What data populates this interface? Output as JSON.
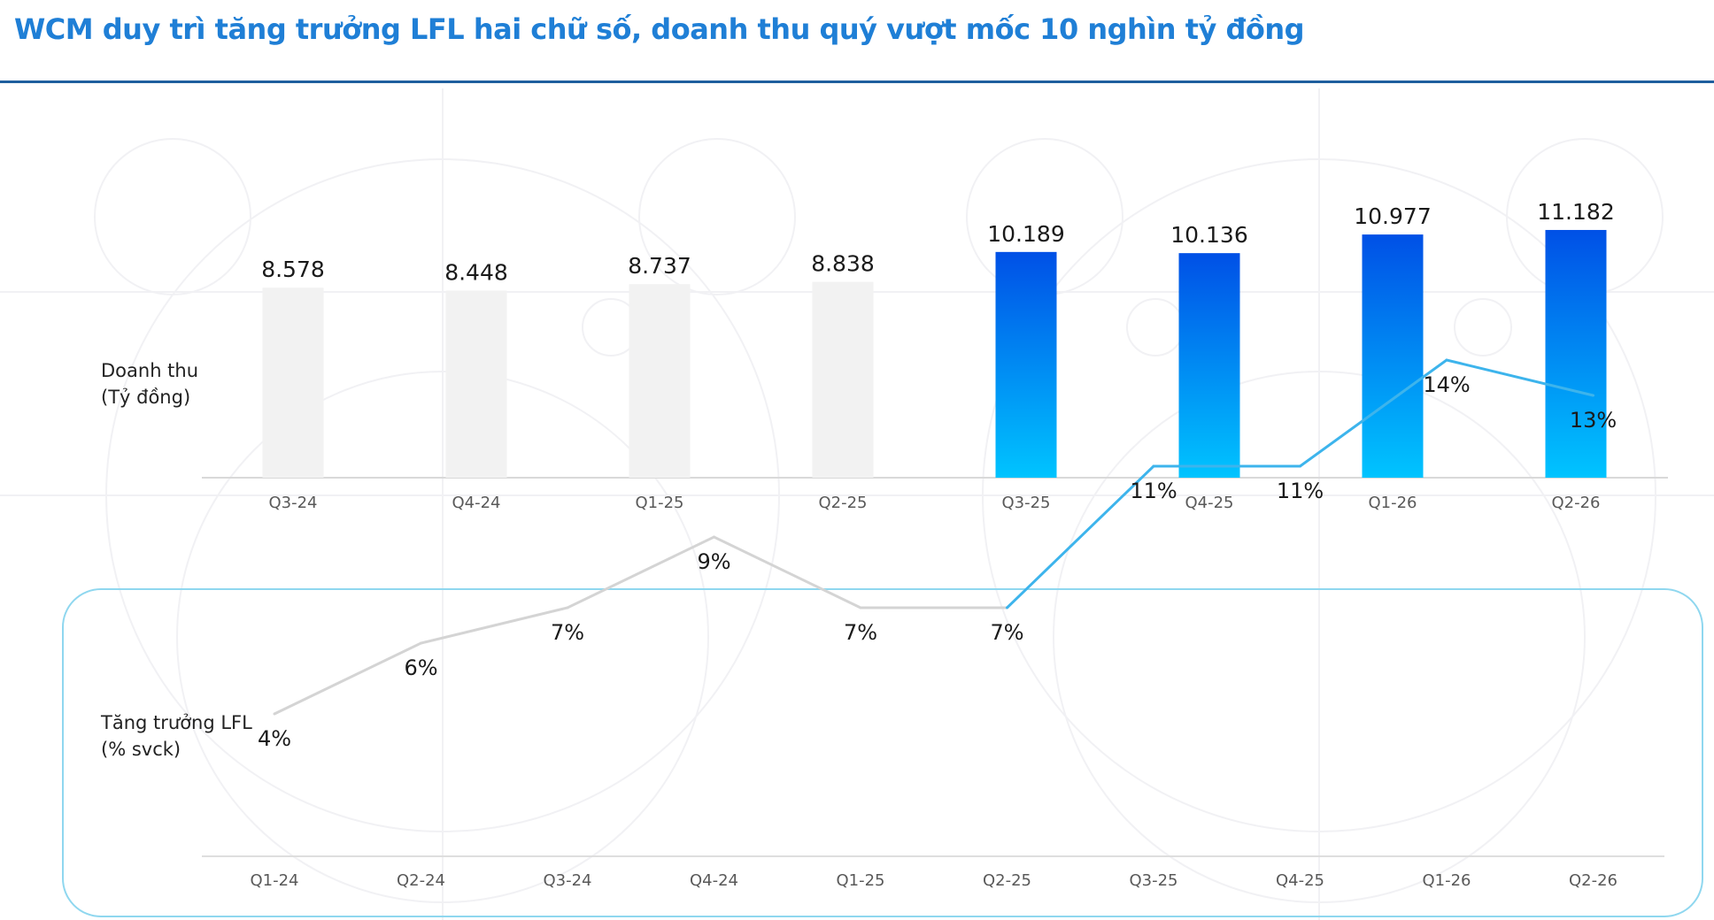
{
  "header": {
    "title": "WCM duy trì tăng trưởng LFL hai chữ số, doanh thu quý vượt mốc 10 nghìn tỷ đồng"
  },
  "colors": {
    "title": "#1f7fd6",
    "title_rule": "#1f5f9e",
    "bar_past": "#f2f2f2",
    "bar_gradient_top": "#0050e6",
    "bar_gradient_bottom": "#00c4ff",
    "line_past": "#d4d4d4",
    "line_recent": "#3db4ec",
    "panel_border": "#8fd7ef",
    "tick_text": "#595959",
    "value_text": "#1a1a1a"
  },
  "chart_data": [
    {
      "type": "bar",
      "ylabel": [
        "Doanh thu",
        "(Tỷ đồng)"
      ],
      "categories": [
        "Q3-24",
        "Q4-24",
        "Q1-25",
        "Q2-25",
        "Q3-25",
        "Q4-25",
        "Q1-26",
        "Q2-26"
      ],
      "values": [
        8578,
        8448,
        8737,
        8838,
        10189,
        10136,
        10977,
        11182
      ],
      "value_labels": [
        "8.578",
        "8.448",
        "8.737",
        "8.838",
        "10.189",
        "10.136",
        "10.977",
        "11.182"
      ],
      "highlight": [
        false,
        false,
        false,
        false,
        true,
        true,
        true,
        true
      ],
      "ylim": [
        0,
        11500
      ],
      "grid": false,
      "legend": "none"
    },
    {
      "type": "line",
      "ylabel": [
        "Tăng trưởng LFL",
        "(% svck)"
      ],
      "categories": [
        "Q1-24",
        "Q2-24",
        "Q3-24",
        "Q4-24",
        "Q1-25",
        "Q2-25",
        "Q3-25",
        "Q4-25",
        "Q1-26",
        "Q2-26"
      ],
      "values": [
        4,
        6,
        7,
        9,
        7,
        7,
        11,
        11,
        14,
        13
      ],
      "value_labels": [
        "4%",
        "6%",
        "7%",
        "9%",
        "7%",
        "7%",
        "11%",
        "11%",
        "14%",
        "13%"
      ],
      "highlight_from_index": 5,
      "ylim": [
        0,
        15
      ],
      "grid": false,
      "legend": "none"
    }
  ]
}
